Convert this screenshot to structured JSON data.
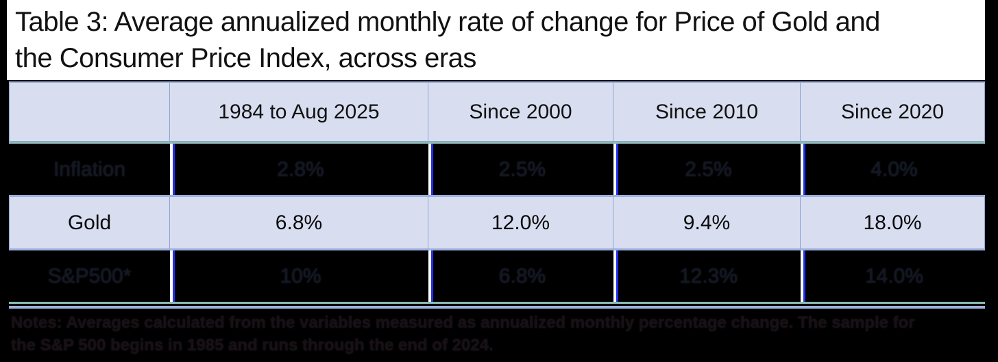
{
  "title_lines": [
    "Table 3: Average annualized monthly rate of change for Price of Gold and",
    "the Consumer Price Index, across eras"
  ],
  "notes_lines": [
    "Notes: Averages calculated from the variables measured as annualized monthly percentage change. The sample for",
    "the S&P 500 begins in 1985 and runs through the end of 2024."
  ],
  "colors": {
    "cell_background": "#d8def0",
    "cell_border": "#8ca3d5",
    "teal_rule": "#8dbcb4",
    "blue_separator": "#2030f0",
    "page_background": "#000000"
  },
  "chart_data": {
    "type": "table",
    "title": "Table 3: Average annualized monthly rate of change for Price of Gold and the Consumer Price Index, across eras",
    "columns": [
      "",
      "1984 to Aug 2025",
      "Since 2000",
      "Since 2010",
      "Since 2020"
    ],
    "rows": [
      {
        "label": "Inflation",
        "values": [
          "2.8%",
          "2.5%",
          "2.5%",
          "4.0%"
        ]
      },
      {
        "label": "Gold",
        "values": [
          "6.8%",
          "12.0%",
          "9.4%",
          "18.0%"
        ]
      },
      {
        "label": "S&P500*",
        "values": [
          "10%",
          "6.8%",
          "12.3%",
          "14.0%"
        ]
      }
    ],
    "notes": "Notes: Averages calculated from the variables measured as annualized monthly percentage change. The sample for the S&P 500 begins in 1985 and runs through the end of 2024."
  }
}
